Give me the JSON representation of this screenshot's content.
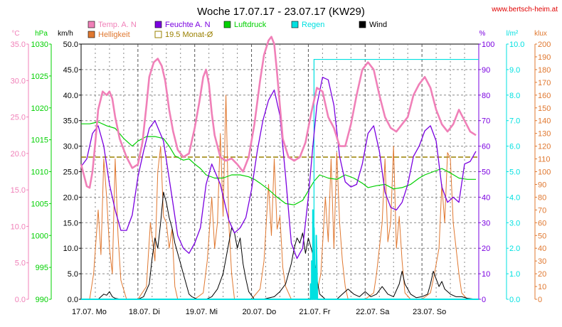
{
  "page": {
    "title": "Woche 17.07.17 - 23.07.17 (KW29)",
    "site": "www.bertsch-heim.at",
    "colors": {
      "temp": "#f080b8",
      "humidity": "#7a00e0",
      "pressure": "#00d000",
      "rain": "#00e0e0",
      "wind": "#000000",
      "brightness": "#e07830",
      "monthly_avg": "#9a8000",
      "grid": "#888888",
      "title": "#000000",
      "site": "#e00000"
    }
  },
  "legend": [
    {
      "key": "temp",
      "label": "Temp. A. N",
      "type": "box"
    },
    {
      "key": "humidity",
      "label": "Feuchte A. N",
      "type": "box"
    },
    {
      "key": "pressure",
      "label": "Luftdruck",
      "type": "box"
    },
    {
      "key": "rain",
      "label": "Regen",
      "type": "box"
    },
    {
      "key": "wind",
      "label": "Wind",
      "type": "box"
    },
    {
      "key": "brightness",
      "label": "Helligkeit",
      "type": "box"
    },
    {
      "key": "monthly_avg",
      "label": "19.5 Monat-Ø",
      "type": "hollow"
    }
  ],
  "chart_data": {
    "type": "line",
    "grid": true,
    "x_range_days": [
      0,
      7
    ],
    "x_ticks": [
      "17.07.  Mo",
      "18.07.  Di",
      "19.07.  Mi",
      "20.07.  Do",
      "21.07.  Fr",
      "22.07.  Sa",
      "23.07.  So"
    ],
    "axes": {
      "temp": {
        "unit": "°C",
        "min": 0,
        "max": 35,
        "ticks": [
          "0.0",
          "5.0",
          "10.0",
          "15.0",
          "20.0",
          "25.0",
          "30.0",
          "35.0"
        ]
      },
      "pressure": {
        "unit": "hPa",
        "min": 990,
        "max": 1030,
        "ticks": [
          "990",
          "995",
          "1000",
          "1005",
          "1010",
          "1015",
          "1020",
          "1025",
          "1030"
        ]
      },
      "wind": {
        "unit": "km/h",
        "min": 0,
        "max": 50,
        "ticks": [
          "0.0",
          "5.0",
          "10.0",
          "15.0",
          "20.0",
          "25.0",
          "30.0",
          "35.0",
          "40.0",
          "45.0",
          "50.0"
        ]
      },
      "humidity": {
        "unit": "%",
        "min": 0,
        "max": 100,
        "ticks": [
          "0",
          "10",
          "20",
          "30",
          "40",
          "50",
          "60",
          "70",
          "80",
          "90",
          "100"
        ]
      },
      "rain": {
        "unit": "l/m²",
        "min": 0,
        "max": 10,
        "ticks": [
          "0.0",
          "1.0",
          "2.0",
          "3.0",
          "4.0",
          "5.0",
          "6.0",
          "7.0",
          "8.0",
          "9.0",
          "10.0"
        ]
      },
      "brightness": {
        "unit": "klux",
        "min": 0,
        "max": 200,
        "ticks": [
          "0",
          "10",
          "20",
          "30",
          "40",
          "50",
          "60",
          "70",
          "80",
          "90",
          "100",
          "110",
          "120",
          "130",
          "140",
          "150",
          "160",
          "170",
          "180",
          "190",
          "200"
        ]
      }
    },
    "monthly_avg_temp": 19.5,
    "series": [
      {
        "name": "Temp. A. N",
        "key": "temp",
        "axis": "temp",
        "x": [
          0,
          0.05,
          0.1,
          0.15,
          0.2,
          0.25,
          0.3,
          0.38,
          0.45,
          0.5,
          0.55,
          0.6,
          0.68,
          0.8,
          0.9,
          1.0,
          1.08,
          1.15,
          1.2,
          1.28,
          1.35,
          1.42,
          1.48,
          1.55,
          1.62,
          1.7,
          1.8,
          1.9,
          2.0,
          2.08,
          2.15,
          2.2,
          2.25,
          2.3,
          2.35,
          2.45,
          2.55,
          2.65,
          2.75,
          2.85,
          2.95,
          3.05,
          3.15,
          3.22,
          3.3,
          3.35,
          3.4,
          3.45,
          3.55,
          3.65,
          3.75,
          3.85,
          3.95,
          4.05,
          4.15,
          4.25,
          4.35,
          4.45,
          4.55,
          4.65,
          4.75,
          4.85,
          4.95,
          5.05,
          5.15,
          5.25,
          5.35,
          5.45,
          5.55,
          5.65,
          5.75,
          5.85,
          5.95,
          6.05,
          6.15,
          6.25,
          6.35,
          6.45,
          6.55,
          6.65,
          6.75,
          6.85,
          6.95
        ],
        "values": [
          18.5,
          17.0,
          15.5,
          15.3,
          17.5,
          21.5,
          26.0,
          28.5,
          28.0,
          28.5,
          27.5,
          25.0,
          22.0,
          19.5,
          18.0,
          18.5,
          21.5,
          26.5,
          30.5,
          32.5,
          33.0,
          32.0,
          30.0,
          26.0,
          23.0,
          20.5,
          19.5,
          20.0,
          23.5,
          27.0,
          30.5,
          31.5,
          29.5,
          25.5,
          22.5,
          19.5,
          19.0,
          19.3,
          18.5,
          17.5,
          19.5,
          24.0,
          30.0,
          33.5,
          35.5,
          36.0,
          35.0,
          31.0,
          22.0,
          19.5,
          19.0,
          19.5,
          21.5,
          25.5,
          29.0,
          28.5,
          25.0,
          23.5,
          21.0,
          21.0,
          24.0,
          28.0,
          31.5,
          32.5,
          31.5,
          28.0,
          25.0,
          23.5,
          23.0,
          24.0,
          25.0,
          28.0,
          29.5,
          30.5,
          29.0,
          26.0,
          24.0,
          23.0,
          24.0,
          26.0,
          24.5,
          23.0,
          22.5
        ]
      },
      {
        "name": "Feuchte A. N",
        "key": "humidity",
        "axis": "humidity",
        "x": [
          0,
          0.1,
          0.2,
          0.3,
          0.4,
          0.5,
          0.6,
          0.7,
          0.8,
          0.9,
          1.0,
          1.1,
          1.2,
          1.3,
          1.45,
          1.6,
          1.7,
          1.8,
          1.9,
          2.0,
          2.1,
          2.2,
          2.3,
          2.45,
          2.6,
          2.7,
          2.8,
          2.9,
          3.0,
          3.1,
          3.2,
          3.3,
          3.4,
          3.5,
          3.6,
          3.7,
          3.8,
          3.9,
          4.0,
          4.08,
          4.15,
          4.25,
          4.35,
          4.45,
          4.55,
          4.65,
          4.75,
          4.85,
          4.95,
          5.05,
          5.15,
          5.25,
          5.35,
          5.45,
          5.55,
          5.65,
          5.75,
          5.85,
          5.95,
          6.05,
          6.15,
          6.25,
          6.35,
          6.45,
          6.55,
          6.65,
          6.75,
          6.85,
          6.95
        ],
        "values": [
          52,
          55,
          65,
          68,
          60,
          45,
          35,
          27,
          27,
          33,
          48,
          58,
          67,
          70,
          62,
          40,
          25,
          20,
          18,
          22,
          28,
          45,
          53,
          45,
          31,
          26,
          28,
          32,
          43,
          58,
          70,
          78,
          82,
          72,
          48,
          22,
          16,
          20,
          40,
          60,
          76,
          87,
          86,
          76,
          56,
          46,
          44,
          45,
          53,
          65,
          68,
          58,
          42,
          36,
          35,
          38,
          45,
          56,
          60,
          66,
          68,
          62,
          44,
          38,
          40,
          38,
          53,
          54,
          58
        ]
      },
      {
        "name": "Luftdruck",
        "key": "pressure",
        "axis": "pressure",
        "x": [
          0,
          0.15,
          0.3,
          0.45,
          0.6,
          0.75,
          0.9,
          1.0,
          1.15,
          1.3,
          1.45,
          1.55,
          1.65,
          1.8,
          1.9,
          2.0,
          2.1,
          2.2,
          2.35,
          2.5,
          2.65,
          2.8,
          2.95,
          3.05,
          3.15,
          3.3,
          3.45,
          3.6,
          3.75,
          3.9,
          4.0,
          4.1,
          4.2,
          4.35,
          4.5,
          4.65,
          4.8,
          4.95,
          5.05,
          5.2,
          5.35,
          5.5,
          5.65,
          5.8,
          5.95,
          6.05,
          6.2,
          6.35,
          6.5,
          6.65,
          6.8,
          6.95
        ],
        "values": [
          1017.5,
          1017.5,
          1017.8,
          1017.2,
          1016.8,
          1015.2,
          1014.0,
          1014.8,
          1015.5,
          1015.5,
          1015.2,
          1014.0,
          1012.5,
          1011.8,
          1012.0,
          1011.2,
          1010.5,
          1009.5,
          1009.0,
          1009.0,
          1009.5,
          1009.5,
          1009.2,
          1008.8,
          1008.2,
          1007.2,
          1006.0,
          1005.0,
          1004.8,
          1005.5,
          1007.0,
          1008.5,
          1009.5,
          1009.0,
          1008.8,
          1009.5,
          1009.0,
          1008.2,
          1007.5,
          1007.8,
          1008.0,
          1007.3,
          1007.5,
          1008.0,
          1009.0,
          1009.5,
          1010.0,
          1010.5,
          1009.8,
          1009.0,
          1008.8,
          1008.8
        ]
      },
      {
        "name": "Regen",
        "key": "rain",
        "axis": "rain",
        "x": [
          0,
          4.0,
          4.04,
          4.04,
          4.06,
          4.06,
          4.08,
          4.08,
          4.1,
          4.1,
          4.12,
          4.12,
          4.14,
          4.14,
          4.16,
          4.16,
          7.0
        ],
        "values": [
          0,
          0,
          0,
          0.6,
          0,
          1.5,
          0,
          3.5,
          0,
          2.8,
          0,
          1.2,
          0,
          2.5,
          0,
          0,
          0
        ],
        "total_step_x": 4.1,
        "total_step_value": 9.4
      },
      {
        "name": "Wind",
        "key": "wind",
        "axis": "wind",
        "x": [
          0,
          0.3,
          0.35,
          0.4,
          0.45,
          0.5,
          0.55,
          0.6,
          0.7,
          0.9,
          1.0,
          1.1,
          1.2,
          1.25,
          1.3,
          1.35,
          1.4,
          1.45,
          1.5,
          1.55,
          1.6,
          1.65,
          1.7,
          1.75,
          1.8,
          1.85,
          1.9,
          1.95,
          2.05,
          2.2,
          2.3,
          2.4,
          2.5,
          2.55,
          2.6,
          2.65,
          2.7,
          2.75,
          2.8,
          2.85,
          2.9,
          2.95,
          3.05,
          3.2,
          3.4,
          3.5,
          3.6,
          3.65,
          3.7,
          3.75,
          3.8,
          3.85,
          3.9,
          3.95,
          4.0,
          4.05,
          4.1,
          4.15,
          4.2,
          4.3,
          4.5,
          4.6,
          4.7,
          4.8,
          4.9,
          5.0,
          5.1,
          5.2,
          5.3,
          5.4,
          5.5,
          5.6,
          5.65,
          5.7,
          5.8,
          5.9,
          6.0,
          6.1,
          6.15,
          6.2,
          6.25,
          6.3,
          6.35,
          6.4,
          6.5,
          6.6,
          6.7,
          6.8,
          6.95
        ],
        "values": [
          0,
          0,
          0.5,
          1,
          0.8,
          1.5,
          0.5,
          0.2,
          0,
          0,
          0,
          0.5,
          3,
          8,
          12,
          10,
          15,
          21,
          19,
          16,
          14,
          11,
          9,
          7,
          5,
          3,
          1,
          0.5,
          0,
          0,
          0.5,
          2,
          5,
          8,
          11,
          14,
          13,
          10,
          12,
          7,
          4,
          1.5,
          0,
          0,
          0.5,
          1.5,
          3,
          5,
          7,
          10,
          12,
          11,
          13,
          9,
          12,
          10,
          8,
          4,
          1,
          0,
          0,
          1,
          2,
          1,
          0.5,
          1.5,
          0.5,
          1,
          2.5,
          1,
          0.5,
          3,
          5.5,
          3,
          1,
          0.3,
          0.5,
          1,
          3,
          5.5,
          4,
          2.5,
          3.5,
          2,
          1,
          0.5,
          0.5,
          0.2,
          0
        ]
      },
      {
        "name": "Helligkeit",
        "key": "brightness",
        "axis": "brightness",
        "x": [
          0,
          0.15,
          0.22,
          0.3,
          0.35,
          0.4,
          0.45,
          0.5,
          0.55,
          0.6,
          0.65,
          0.7,
          0.8,
          1.0,
          1.15,
          1.22,
          1.3,
          1.35,
          1.4,
          1.45,
          1.5,
          1.55,
          1.6,
          1.65,
          1.7,
          1.8,
          2.0,
          2.15,
          2.22,
          2.3,
          2.35,
          2.4,
          2.45,
          2.5,
          2.55,
          2.6,
          2.65,
          2.7,
          2.8,
          3.0,
          3.15,
          3.22,
          3.3,
          3.35,
          3.4,
          3.45,
          3.5,
          3.55,
          3.6,
          3.7,
          3.8,
          4.0,
          4.15,
          4.22,
          4.3,
          4.35,
          4.4,
          4.45,
          4.5,
          4.55,
          4.6,
          4.65,
          4.7,
          4.8,
          5.0,
          5.15,
          5.2,
          5.3,
          5.35,
          5.4,
          5.45,
          5.5,
          5.55,
          5.6,
          5.65,
          5.7,
          5.8,
          6.0,
          6.15,
          6.22,
          6.3,
          6.35,
          6.4,
          6.45,
          6.5,
          6.55,
          6.6,
          6.65,
          6.7,
          6.8,
          6.95
        ],
        "values": [
          0,
          0,
          20,
          70,
          35,
          110,
          80,
          40,
          20,
          110,
          50,
          15,
          0,
          0,
          10,
          60,
          30,
          100,
          120,
          65,
          60,
          40,
          55,
          10,
          0,
          0,
          0,
          5,
          30,
          80,
          40,
          60,
          130,
          65,
          160,
          60,
          20,
          0,
          0,
          0,
          8,
          30,
          90,
          50,
          110,
          55,
          65,
          25,
          10,
          0,
          0,
          0,
          5,
          20,
          80,
          45,
          110,
          40,
          115,
          60,
          30,
          10,
          0,
          0,
          0,
          5,
          20,
          60,
          110,
          45,
          60,
          120,
          40,
          65,
          30,
          5,
          0,
          0,
          5,
          20,
          40,
          90,
          60,
          115,
          110,
          60,
          40,
          20,
          5,
          0,
          0
        ]
      }
    ]
  }
}
